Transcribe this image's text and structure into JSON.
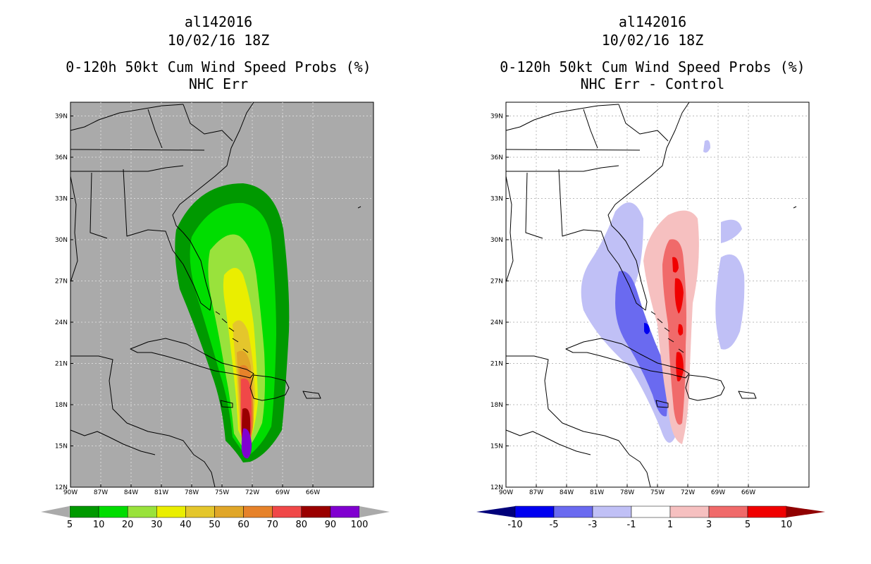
{
  "left": {
    "title_line1": "al142016",
    "title_line2": "10/02/16 18Z",
    "title_line3": "0-120h 50kt Cum Wind Speed Probs (%)",
    "title_line4": "NHC Err",
    "colorbar_labels": [
      "5",
      "10",
      "20",
      "30",
      "40",
      "50",
      "60",
      "70",
      "80",
      "90",
      "100"
    ],
    "colorbar_colors": [
      "#009900",
      "#00dd00",
      "#99e23c",
      "#eaee00",
      "#e4c62c",
      "#e0a628",
      "#e6822a",
      "#f04848",
      "#9a0000",
      "#8000d0"
    ]
  },
  "right": {
    "title_line1": "al142016",
    "title_line2": "10/02/16 18Z",
    "title_line3": "0-120h 50kt Cum Wind Speed Probs (%)",
    "title_line4": "NHC Err - Control",
    "colorbar_labels": [
      "-10",
      "-5",
      "-3",
      "-1",
      "1",
      "3",
      "5",
      "10"
    ],
    "colorbar_colors": [
      "#0000b0",
      "#0000f0",
      "#6a6af0",
      "#c0c0f6",
      "#ffffff",
      "#f6c0c0",
      "#f06a6a",
      "#f00000",
      "#900000"
    ]
  },
  "axes": {
    "lat_labels": [
      "39N",
      "36N",
      "33N",
      "30N",
      "27N",
      "24N",
      "21N",
      "18N",
      "15N",
      "12N"
    ],
    "lon_labels": [
      "90W",
      "87W",
      "84W",
      "81W",
      "78W",
      "75W",
      "72W",
      "69W",
      "66W"
    ]
  },
  "colors": {
    "background_left": "#aaaaaa",
    "background_right": "#ffffff"
  }
}
